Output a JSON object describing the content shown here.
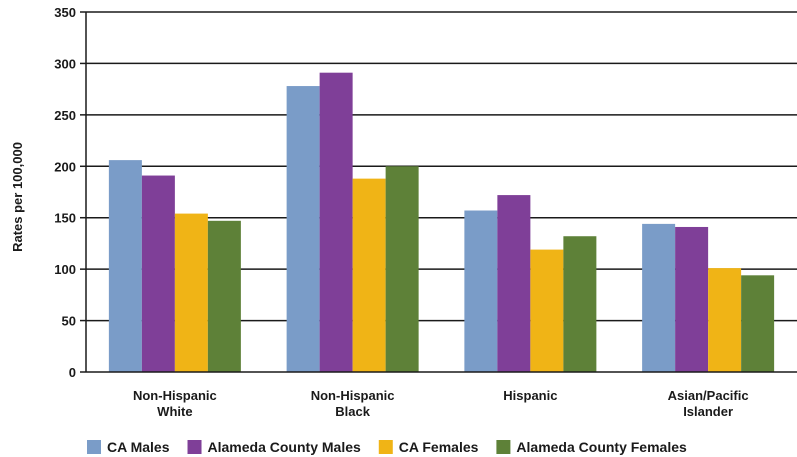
{
  "chart_data": {
    "type": "bar",
    "title": "",
    "ylabel": "Rates per 100,000",
    "xlabel": "",
    "ylim": [
      0,
      350
    ],
    "yticks": [
      0,
      50,
      100,
      150,
      200,
      250,
      300,
      350
    ],
    "grid": true,
    "legend_position": "bottom",
    "categories": [
      [
        "Non-Hispanic",
        "White"
      ],
      [
        "Non-Hispanic",
        "Black"
      ],
      [
        "Hispanic"
      ],
      [
        "Asian/Pacific",
        "Islander"
      ]
    ],
    "series": [
      {
        "name": "CA Males",
        "color": "#7a9cc8",
        "values": [
          206,
          278,
          157,
          144
        ]
      },
      {
        "name": "Alameda County Males",
        "color": "#7f3f98",
        "values": [
          191,
          291,
          172,
          141
        ]
      },
      {
        "name": "CA Females",
        "color": "#f0b416",
        "values": [
          154,
          188,
          119,
          101
        ]
      },
      {
        "name": "Alameda County Females",
        "color": "#5e8138",
        "values": [
          147,
          200,
          132,
          94
        ]
      }
    ]
  }
}
